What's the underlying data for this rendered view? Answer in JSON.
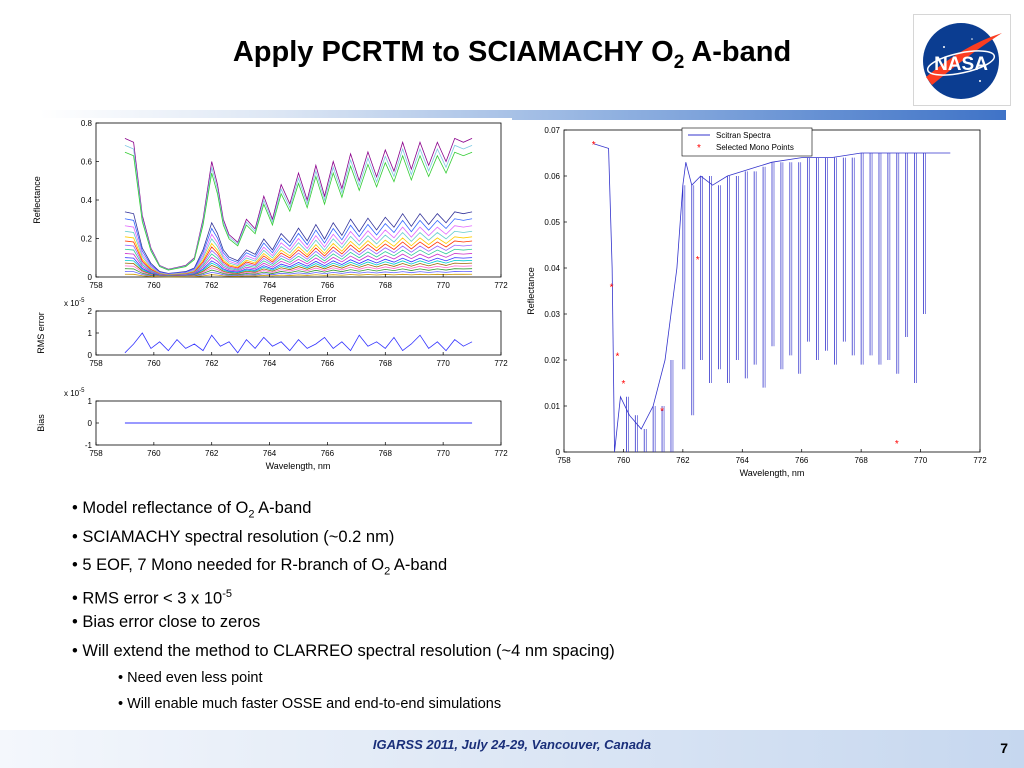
{
  "slide": {
    "title_main": "Apply PCRTM to SCIAMACHY O",
    "title_sub": "2",
    "title_end": " A-band",
    "logo_text": "NASA",
    "footer": "IGARSS 2011, July 24-29, Vancouver, Canada",
    "page_number": "7"
  },
  "bullets": {
    "b1_pre": "Model reflectance of O",
    "b1_sub": "2",
    "b1_post": " A-band",
    "b2": "SCIAMACHY spectral resolution (~0.2 nm)",
    "b3_pre": "5 EOF, 7 Mono needed for R-branch of O",
    "b3_sub": "2",
    "b3_post": " A-band",
    "b4_pre": "RMS error < 3 x 10",
    "b4_sup": "-5",
    "b5": "Bias error close to zeros",
    "b6": "Will extend the method to CLARREO spectral resolution (~4 nm spacing)",
    "b7": "Need even less point",
    "b8": "Will enable much faster OSSE and end-to-end simulations"
  },
  "chart_data": [
    {
      "type": "line",
      "ylabel": "Reflectance",
      "xlabel": "Regeneration Error",
      "xlim": [
        758,
        772
      ],
      "ylim": [
        0,
        0.8
      ],
      "xticks": [
        "758",
        "760",
        "762",
        "764",
        "766",
        "768",
        "770",
        "772"
      ],
      "yticks": [
        "0",
        "0.2",
        "0.4",
        "0.6",
        "0.8"
      ],
      "x": [
        759,
        759.3,
        759.6,
        759.9,
        760.2,
        760.5,
        760.8,
        761.1,
        761.4,
        761.7,
        762.0,
        762.2,
        762.4,
        762.6,
        762.9,
        763.2,
        763.5,
        763.8,
        764.1,
        764.4,
        764.7,
        765.0,
        765.3,
        765.6,
        765.9,
        766.2,
        766.5,
        766.8,
        767.1,
        767.4,
        767.7,
        768.0,
        768.3,
        768.6,
        768.9,
        769.2,
        769.5,
        769.8,
        770.1,
        770.4,
        770.7,
        771.0
      ],
      "series_top": [
        0.72,
        0.7,
        0.32,
        0.15,
        0.06,
        0.04,
        0.05,
        0.06,
        0.1,
        0.3,
        0.6,
        0.48,
        0.3,
        0.22,
        0.18,
        0.3,
        0.25,
        0.42,
        0.3,
        0.48,
        0.38,
        0.54,
        0.4,
        0.58,
        0.42,
        0.6,
        0.46,
        0.64,
        0.5,
        0.65,
        0.52,
        0.66,
        0.55,
        0.7,
        0.56,
        0.7,
        0.58,
        0.7,
        0.6,
        0.72,
        0.7,
        0.72
      ],
      "series_levels": [
        1.0,
        0.95,
        0.9,
        0.47,
        0.42,
        0.37,
        0.33,
        0.29,
        0.26,
        0.23,
        0.2,
        0.17,
        0.14,
        0.12,
        0.1,
        0.08,
        0.06,
        0.04,
        0.02
      ],
      "series_colors": [
        "#8b008b",
        "#7ec8e3",
        "#33cc33",
        "#333399",
        "#3366ff",
        "#e066ff",
        "#66cccc",
        "#ffcc00",
        "#ff3300",
        "#9966ff",
        "#33cc99",
        "#cc33cc",
        "#3333ff",
        "#00cccc",
        "#996600",
        "#ff66cc",
        "#339933",
        "#6666ff",
        "#cc9900"
      ]
    },
    {
      "type": "line",
      "ylabel": "RMS error",
      "exponent": "x 10",
      "exponent_sup": "-5",
      "xlim": [
        758,
        772
      ],
      "ylim": [
        0,
        2
      ],
      "xticks": [
        "758",
        "760",
        "762",
        "764",
        "766",
        "768",
        "770",
        "772"
      ],
      "yticks": [
        "0",
        "1",
        "2"
      ],
      "x": [
        759,
        759.3,
        759.6,
        759.9,
        760.2,
        760.5,
        760.8,
        761.1,
        761.4,
        761.7,
        762.0,
        762.3,
        762.6,
        762.9,
        763.2,
        763.5,
        763.8,
        764.1,
        764.4,
        764.7,
        765.0,
        765.3,
        765.6,
        765.9,
        766.2,
        766.5,
        766.8,
        767.1,
        767.4,
        767.7,
        768.0,
        768.3,
        768.6,
        768.9,
        769.2,
        769.5,
        769.8,
        770.1,
        770.4,
        770.7,
        771.0
      ],
      "values": [
        0.1,
        0.5,
        1.0,
        0.3,
        0.6,
        0.2,
        0.7,
        0.3,
        0.5,
        0.2,
        0.9,
        0.4,
        0.6,
        0.1,
        0.7,
        0.3,
        0.8,
        0.4,
        0.6,
        0.2,
        0.7,
        0.3,
        0.5,
        0.8,
        0.3,
        0.6,
        0.2,
        0.9,
        0.4,
        0.6,
        0.3,
        0.8,
        0.2,
        0.5,
        0.9,
        0.3,
        0.6,
        0.2,
        0.7,
        0.4,
        0.6
      ]
    },
    {
      "type": "line",
      "ylabel": "Bias",
      "xlabel": "Wavelength, nm",
      "exponent": "x 10",
      "exponent_sup": "-5",
      "xlim": [
        758,
        772
      ],
      "ylim": [
        -1,
        1
      ],
      "xticks": [
        "758",
        "760",
        "762",
        "764",
        "766",
        "768",
        "770",
        "772"
      ],
      "yticks": [
        "-1",
        "0",
        "1"
      ],
      "x": [
        759,
        771
      ],
      "values": [
        0,
        0
      ]
    },
    {
      "type": "line",
      "ylabel": "Reflectance",
      "xlabel": "Wavelength, nm",
      "xlim": [
        758,
        772
      ],
      "ylim": [
        0,
        0.07
      ],
      "xticks": [
        "758",
        "760",
        "762",
        "764",
        "766",
        "768",
        "770",
        "772"
      ],
      "yticks": [
        "0",
        "0.01",
        "0.02",
        "0.03",
        "0.04",
        "0.05",
        "0.06",
        "0.07"
      ],
      "legend": [
        "Scitran Spectra",
        "Selected Mono Points"
      ],
      "legend_position": "top-right",
      "lines": [
        759.8,
        760.1,
        760.4,
        760.7,
        761.0,
        761.3,
        761.6,
        762.0,
        762.3,
        762.6,
        762.9,
        763.2,
        763.5,
        763.8,
        764.1,
        764.4,
        764.7,
        765.0,
        765.3,
        765.6,
        765.9,
        766.2,
        766.5,
        766.8,
        767.1,
        767.4,
        767.7,
        768.0,
        768.3,
        768.6,
        768.9,
        769.2,
        769.5,
        769.8,
        770.1
      ],
      "line_depths": [
        0.05,
        0.05,
        0.055,
        0.045,
        0.055,
        0.045,
        0.06,
        0.04,
        0.05,
        0.04,
        0.045,
        0.04,
        0.045,
        0.04,
        0.045,
        0.042,
        0.048,
        0.04,
        0.045,
        0.042,
        0.046,
        0.04,
        0.044,
        0.042,
        0.045,
        0.04,
        0.043,
        0.046,
        0.044,
        0.046,
        0.045,
        0.048,
        0.04,
        0.05,
        0.035
      ],
      "markers": [
        [
          759.0,
          0.067
        ],
        [
          759.6,
          0.036
        ],
        [
          759.8,
          0.021
        ],
        [
          760.0,
          0.015
        ],
        [
          761.3,
          0.009
        ],
        [
          762.5,
          0.042
        ],
        [
          769.2,
          0.002
        ]
      ]
    }
  ]
}
